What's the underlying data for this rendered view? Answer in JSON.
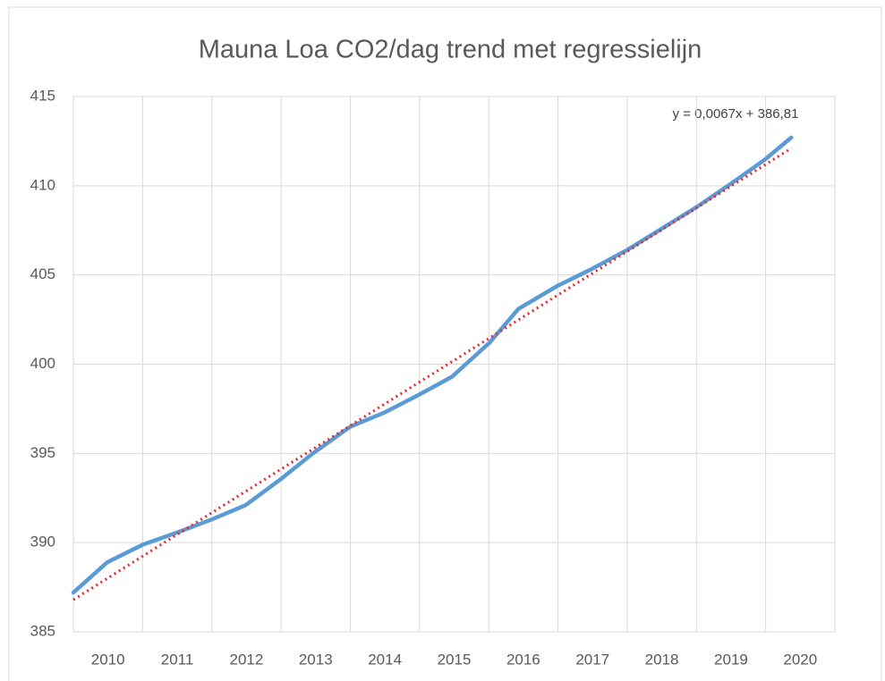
{
  "chart_data": {
    "type": "line",
    "title": "Mauna Loa CO2/dag trend met regressielijn",
    "annotation": "y = 0,0067x + 386,81",
    "xlim": [
      2010,
      2021
    ],
    "xticks": [
      2010,
      2011,
      2012,
      2013,
      2014,
      2015,
      2016,
      2017,
      2018,
      2019,
      2020
    ],
    "ylim": [
      385,
      415
    ],
    "yticks": [
      385,
      390,
      395,
      400,
      405,
      410,
      415
    ],
    "grid": true,
    "series": [
      {
        "color": "#5b9bd5",
        "style": "solid",
        "x": [
          2010.0,
          2010.49,
          2011.01,
          2011.52,
          2012.0,
          2012.49,
          2013.01,
          2013.46,
          2014.0,
          2014.5,
          2015.0,
          2015.47,
          2016.01,
          2016.43,
          2017.0,
          2017.47,
          2018.0,
          2018.5,
          2019.0,
          2019.53,
          2020.0,
          2020.37
        ],
        "values": [
          387.2,
          388.9,
          389.9,
          390.6,
          391.3,
          392.1,
          393.6,
          395.0,
          396.5,
          397.3,
          398.3,
          399.3,
          401.2,
          403.1,
          404.4,
          405.3,
          406.4,
          407.6,
          408.8,
          410.2,
          411.5,
          412.7
        ]
      },
      {
        "color": "#e8282b",
        "style": "dotted",
        "x": [
          2010.0,
          2020.37
        ],
        "values": [
          386.8,
          412.1
        ]
      }
    ]
  }
}
